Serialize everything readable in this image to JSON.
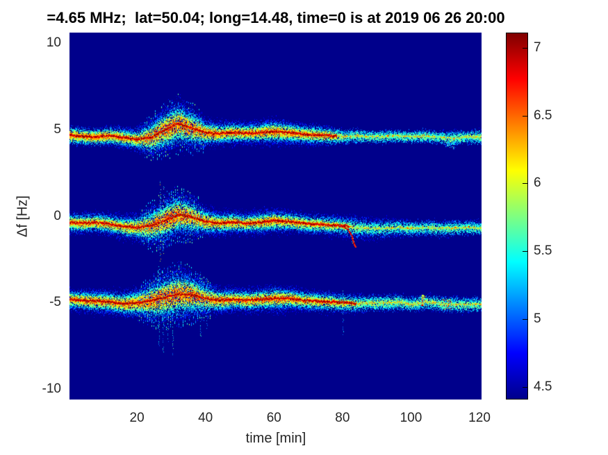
{
  "window": {
    "background": "#FFFFFF"
  },
  "title": {
    "text": "=4.65 MHz;  lat=50.04; long=14.48, time=0 is at 2019 06 26 20:00"
  },
  "colors": {
    "title_text": "#000000",
    "axis_text": "#262626",
    "plot_background": "#00008B",
    "colorbar_border": "#000000"
  },
  "chart_data": {
    "type": "heatmap",
    "subtype": "doppler-shift-spectrogram",
    "title": "=4.65 MHz;  lat=50.04; long=14.48, time=0 is at 2019 06 26 20:00",
    "xlabel": "time [min]",
    "ylabel": "Δf [Hz]",
    "xlim": [
      0.3,
      120.6
    ],
    "ylim": [
      -10.6,
      10.6
    ],
    "xticks": [
      20,
      40,
      60,
      80,
      100,
      120
    ],
    "yticks": [
      10,
      5,
      0,
      -5,
      -10
    ],
    "grid": false,
    "legend": "none",
    "background_value": 4.41,
    "colorbar": {
      "min": 4.41,
      "max": 7.11,
      "ticks": [
        7,
        6.5,
        6,
        5.5,
        5,
        4.5
      ],
      "colormap": "jet",
      "stops": [
        {
          "pos": 0.0,
          "color": "#00008B"
        },
        {
          "pos": 0.125,
          "color": "#0000FF"
        },
        {
          "pos": 0.375,
          "color": "#00FFFF"
        },
        {
          "pos": 0.625,
          "color": "#FFFF00"
        },
        {
          "pos": 0.875,
          "color": "#FF0000"
        },
        {
          "pos": 1.0,
          "color": "#7F0000"
        }
      ]
    },
    "bands": [
      {
        "name": "upper-doppler-trace-near-plus5Hz",
        "t": [
          0,
          4,
          8,
          12,
          16,
          20,
          24,
          28,
          32,
          36,
          40,
          44,
          48,
          52,
          56,
          60,
          64,
          68,
          72,
          76,
          80,
          84,
          88,
          92,
          96,
          100,
          104,
          108,
          112,
          116,
          120
        ],
        "center": [
          4.7,
          4.62,
          4.58,
          4.66,
          4.55,
          4.45,
          4.55,
          5.0,
          5.35,
          5.1,
          4.82,
          4.78,
          4.84,
          4.8,
          4.84,
          4.9,
          4.84,
          4.76,
          4.7,
          4.66,
          4.6,
          4.64,
          4.6,
          4.6,
          4.64,
          4.6,
          4.64,
          4.58,
          4.48,
          4.6,
          4.6
        ],
        "spread": [
          0.45,
          0.4,
          0.4,
          0.45,
          0.5,
          0.6,
          0.9,
          1.1,
          1.15,
          1.0,
          0.7,
          0.6,
          0.6,
          0.55,
          0.6,
          0.65,
          0.6,
          0.55,
          0.5,
          0.45,
          0.35,
          0.35,
          0.3,
          0.3,
          0.3,
          0.3,
          0.3,
          0.3,
          0.45,
          0.3,
          0.35
        ],
        "intensity": [
          0.85,
          0.8,
          0.8,
          0.85,
          0.8,
          0.75,
          0.9,
          1.0,
          1.0,
          0.95,
          0.9,
          0.85,
          0.85,
          0.85,
          0.85,
          0.9,
          0.85,
          0.8,
          0.75,
          0.7,
          0.45,
          0.45,
          0.4,
          0.4,
          0.4,
          0.4,
          0.4,
          0.4,
          0.45,
          0.4,
          0.45
        ]
      },
      {
        "name": "middle-doppler-trace-near-0Hz",
        "t": [
          0,
          4,
          8,
          12,
          16,
          20,
          24,
          28,
          32,
          36,
          40,
          44,
          48,
          52,
          56,
          60,
          64,
          68,
          72,
          76,
          80,
          84,
          88,
          92,
          96,
          100,
          104,
          108,
          112,
          116,
          120
        ],
        "center": [
          -0.35,
          -0.4,
          -0.35,
          -0.45,
          -0.6,
          -0.65,
          -0.55,
          -0.25,
          0.1,
          -0.05,
          -0.3,
          -0.4,
          -0.35,
          -0.4,
          -0.35,
          -0.25,
          -0.3,
          -0.4,
          -0.45,
          -0.5,
          -0.55,
          -0.65,
          -0.7,
          -0.7,
          -0.65,
          -0.7,
          -0.65,
          -0.7,
          -0.7,
          -0.65,
          -0.7
        ],
        "spread": [
          0.5,
          0.5,
          0.5,
          0.55,
          0.6,
          0.7,
          0.95,
          1.1,
          1.1,
          0.95,
          0.7,
          0.6,
          0.6,
          0.55,
          0.6,
          0.6,
          0.55,
          0.5,
          0.5,
          0.5,
          0.55,
          0.6,
          0.55,
          0.5,
          0.45,
          0.4,
          0.4,
          0.4,
          0.4,
          0.35,
          0.4
        ],
        "intensity": [
          0.8,
          0.8,
          0.8,
          0.8,
          0.8,
          0.8,
          0.9,
          1.0,
          1.0,
          0.9,
          0.85,
          0.8,
          0.8,
          0.8,
          0.8,
          0.85,
          0.8,
          0.75,
          0.7,
          0.65,
          0.6,
          0.5,
          0.45,
          0.45,
          0.4,
          0.4,
          0.4,
          0.4,
          0.4,
          0.4,
          0.4
        ]
      },
      {
        "name": "lower-doppler-trace-near-minus5Hz",
        "t": [
          0,
          4,
          8,
          12,
          16,
          20,
          24,
          28,
          32,
          36,
          40,
          44,
          48,
          52,
          56,
          60,
          64,
          68,
          72,
          76,
          80,
          84,
          88,
          92,
          96,
          100,
          104,
          108,
          112,
          116,
          120
        ],
        "center": [
          -4.8,
          -4.85,
          -4.9,
          -4.95,
          -5.05,
          -5.0,
          -4.88,
          -4.68,
          -4.5,
          -4.55,
          -4.75,
          -4.85,
          -4.8,
          -4.85,
          -4.8,
          -4.75,
          -4.75,
          -4.85,
          -4.9,
          -4.95,
          -5.0,
          -5.05,
          -5.0,
          -5.0,
          -4.95,
          -5.1,
          -4.95,
          -5.05,
          -5.1,
          -5.1,
          -5.1
        ],
        "spread": [
          0.55,
          0.55,
          0.6,
          0.6,
          0.65,
          0.75,
          1.0,
          1.2,
          1.25,
          1.1,
          0.8,
          0.65,
          0.6,
          0.6,
          0.6,
          0.65,
          0.6,
          0.55,
          0.5,
          0.5,
          0.45,
          0.45,
          0.4,
          0.4,
          0.4,
          0.35,
          0.4,
          0.4,
          0.4,
          0.35,
          0.35
        ],
        "intensity": [
          0.85,
          0.85,
          0.85,
          0.85,
          0.85,
          0.85,
          0.95,
          1.0,
          1.0,
          0.95,
          0.9,
          0.85,
          0.85,
          0.85,
          0.85,
          0.9,
          0.85,
          0.8,
          0.75,
          0.7,
          0.6,
          0.55,
          0.5,
          0.5,
          0.5,
          0.45,
          0.5,
          0.45,
          0.5,
          0.45,
          0.45
        ]
      }
    ],
    "features": [
      {
        "type": "vertical-streak",
        "band": 1,
        "t": 26.6,
        "from": -2.6,
        "to": 2.2,
        "style": "bright"
      },
      {
        "type": "vertical-streak",
        "band": 1,
        "t": 27.6,
        "from": -2.2,
        "to": 1.8,
        "style": "bright"
      },
      {
        "type": "vertical-streak",
        "band": 2,
        "t": 26.3,
        "from": -7.6,
        "to": -2.9
      },
      {
        "type": "vertical-streak",
        "band": 2,
        "t": 27.4,
        "from": -7.9,
        "to": -3.0
      },
      {
        "type": "vertical-streak",
        "band": 2,
        "t": 29.0,
        "from": -7.3,
        "to": -2.8
      },
      {
        "type": "vertical-streak",
        "band": 2,
        "t": 30.4,
        "from": -8.0,
        "to": -3.1
      },
      {
        "type": "vertical-streak",
        "band": 2,
        "t": 38.5,
        "from": -7.0,
        "to": -3.2
      },
      {
        "type": "vertical-streak",
        "band": 2,
        "t": 40.2,
        "from": -6.6,
        "to": -3.4
      },
      {
        "type": "vertical-streak",
        "band": 2,
        "t": 80.0,
        "from": -6.9,
        "to": -4.2
      },
      {
        "type": "hook",
        "band": 1,
        "points": [
          [
            79.5,
            -0.55
          ],
          [
            81.5,
            -0.75
          ],
          [
            82.5,
            -1.1
          ],
          [
            83.2,
            -1.55
          ],
          [
            83.6,
            -1.75
          ]
        ]
      },
      {
        "type": "cluster",
        "band": 0,
        "t": 111.5,
        "f": 4.25,
        "dt": 1.6,
        "df": 0.35
      },
      {
        "type": "cluster",
        "band": 2,
        "t": 103.5,
        "f": -4.85,
        "dt": 0.6,
        "df": 0.3,
        "hot": true
      },
      {
        "type": "cluster",
        "band": 2,
        "t": 110.5,
        "f": -5.1,
        "dt": 1.2,
        "df": 0.35,
        "hot": true
      }
    ]
  }
}
